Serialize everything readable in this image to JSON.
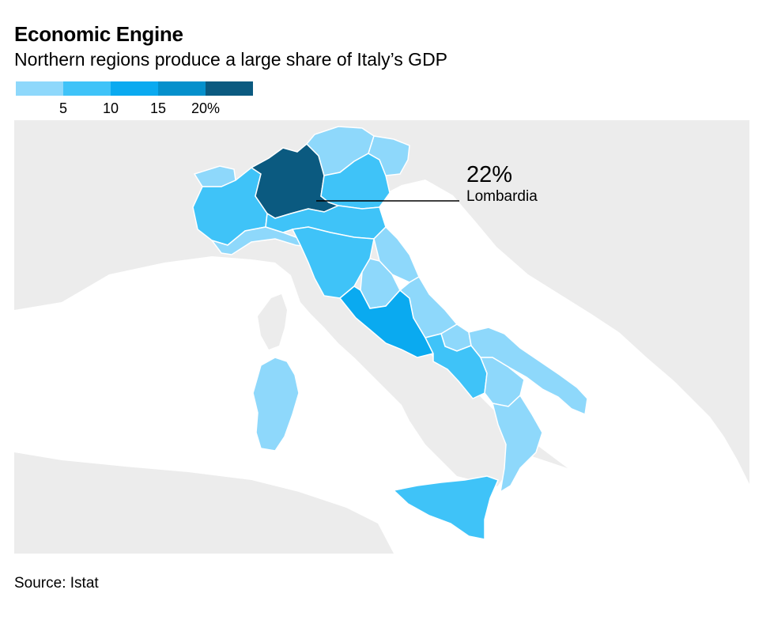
{
  "title": "Economic Engine",
  "subtitle": "Northern regions produce a large share of Italy’s GDP",
  "legend": {
    "colors": [
      "#8ed8fb",
      "#3fc3f8",
      "#0aaaf0",
      "#0590cc",
      "#0b5a80"
    ],
    "ticks": [
      "5",
      "10",
      "15",
      "20%"
    ]
  },
  "callout": {
    "value": "22%",
    "region": "Lombardia"
  },
  "source": "Source: Istat",
  "colors": {
    "background": "#ffffff",
    "land_other": "#ececec",
    "borders": "#ffffff"
  },
  "chart_data": {
    "type": "choropleth",
    "unit": "% of GDP",
    "bins": [
      0,
      5,
      10,
      15,
      20
    ],
    "highlight": {
      "region": "Lombardia",
      "value": 22
    }
  }
}
